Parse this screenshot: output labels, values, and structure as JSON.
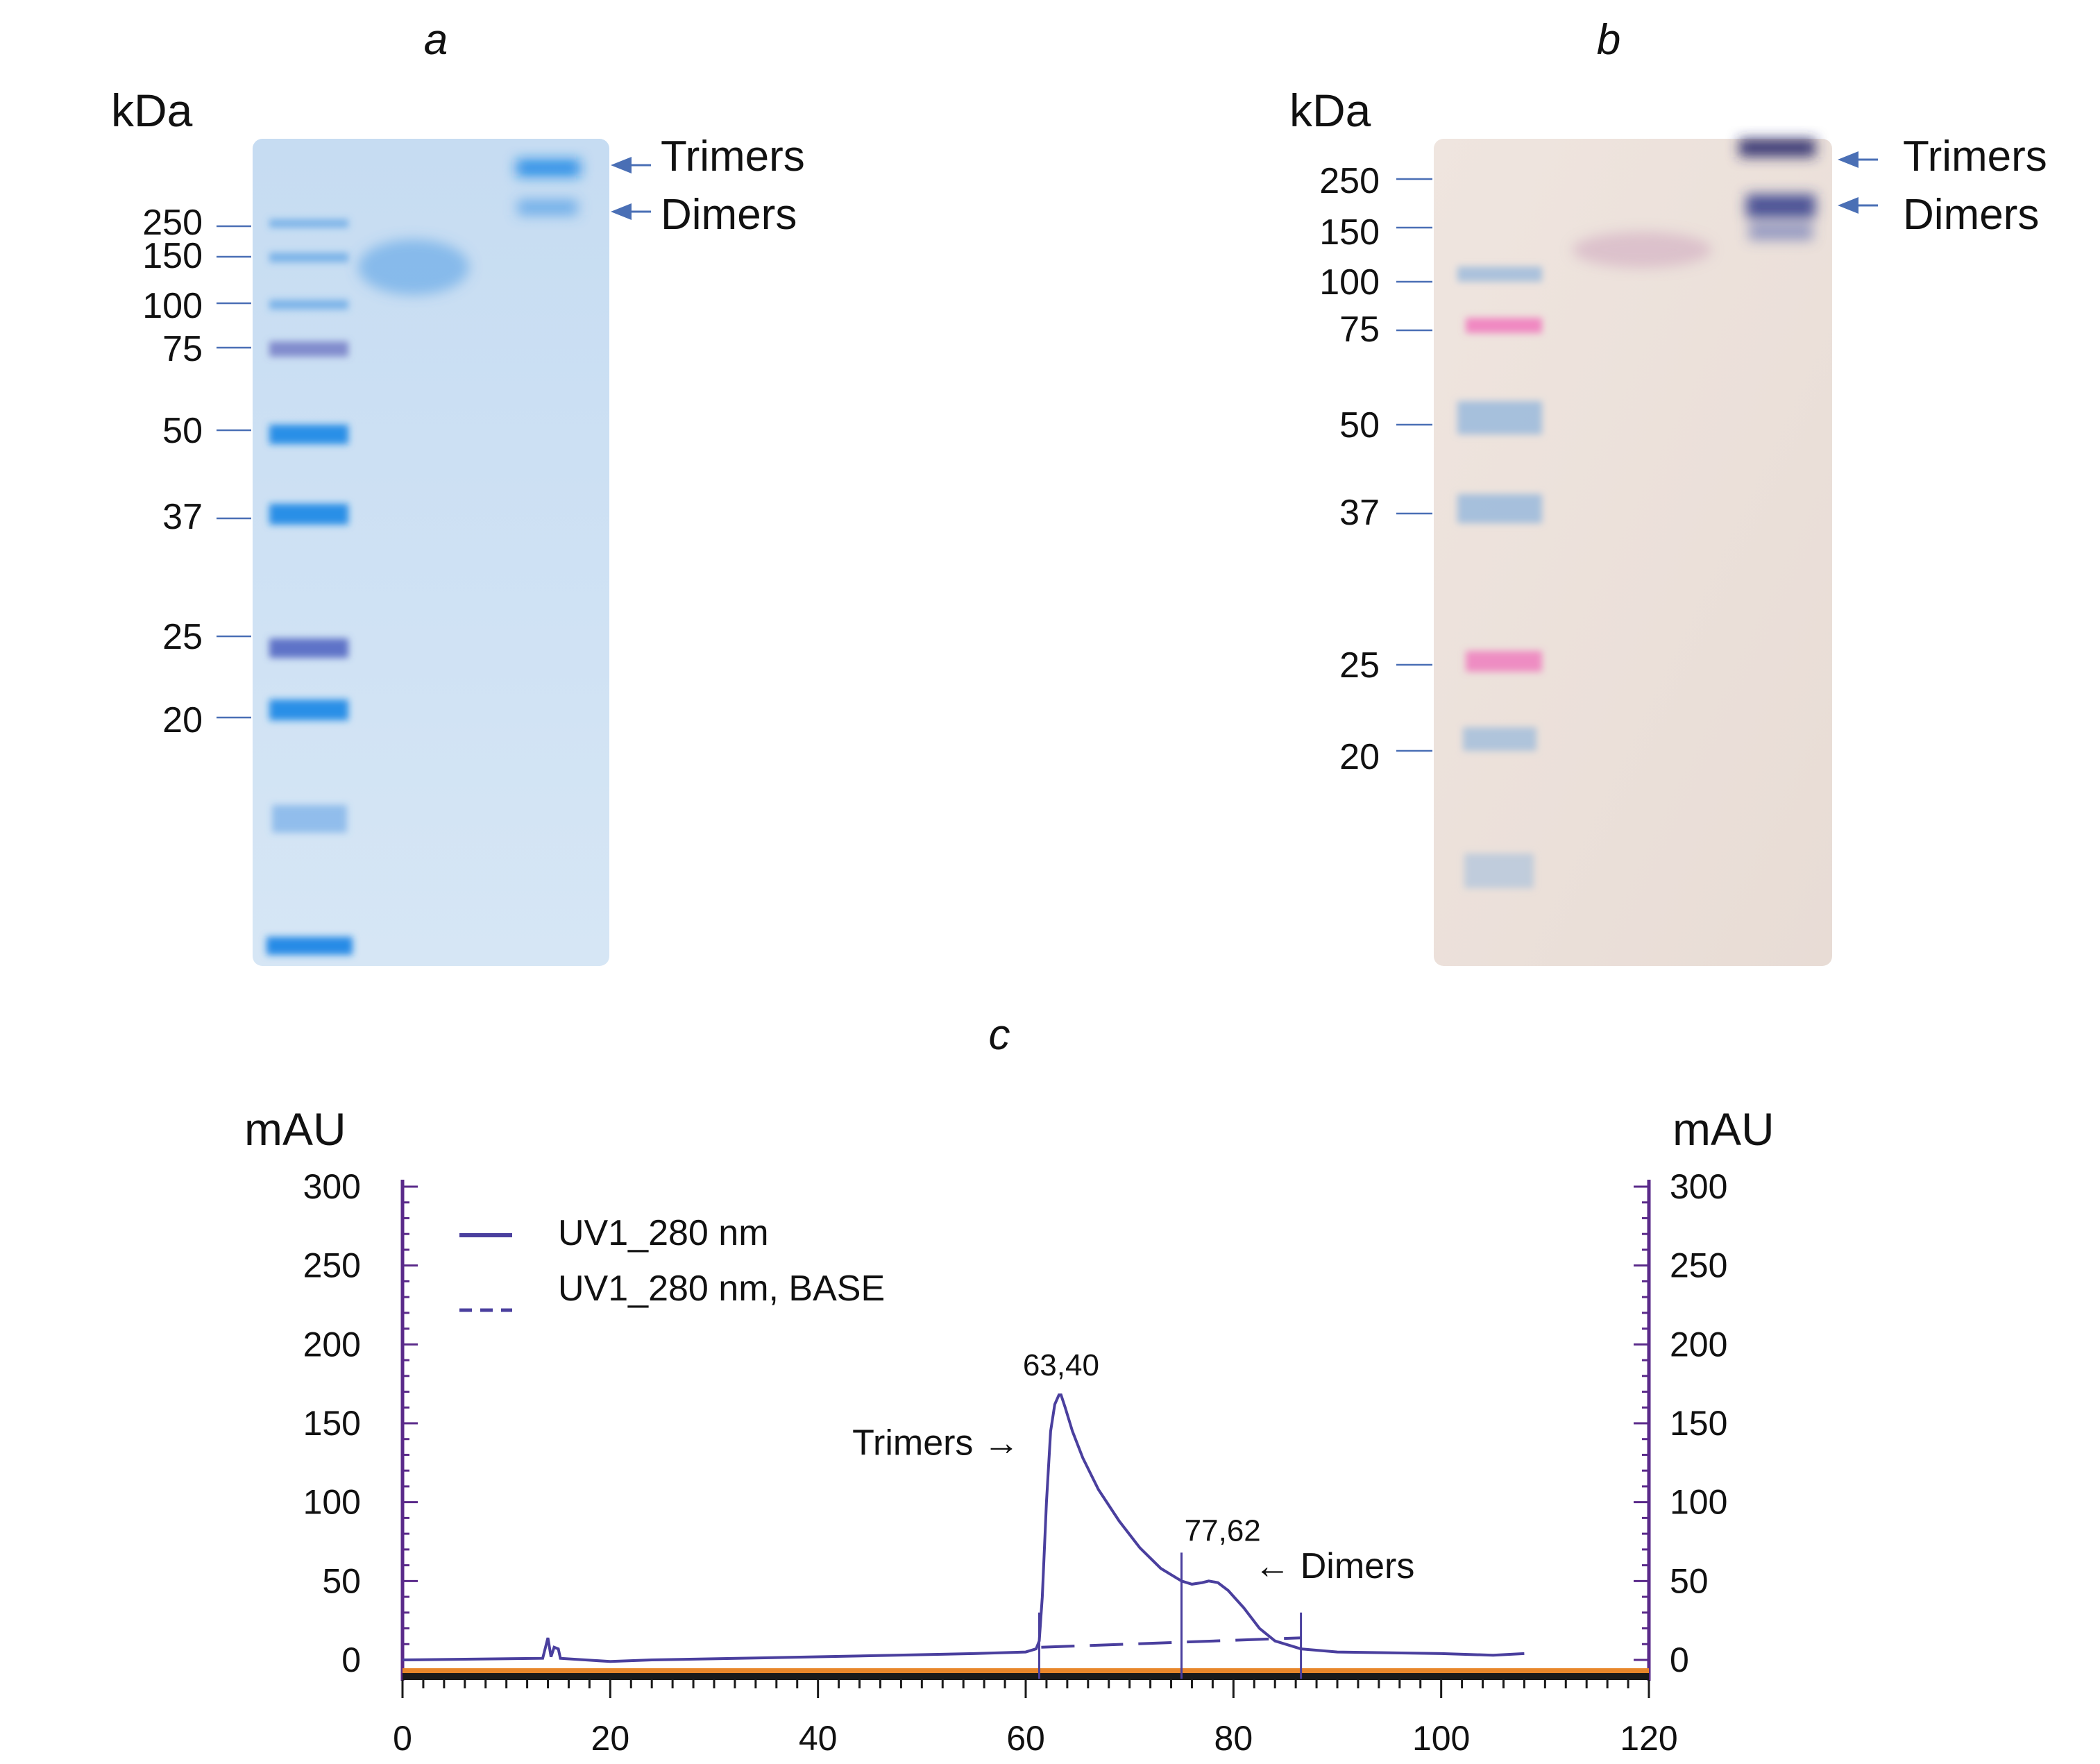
{
  "panel_a": {
    "label": "a",
    "unit": "kDa",
    "markers": [
      "250",
      "150",
      "100",
      "75",
      "50",
      "37",
      "25",
      "20"
    ],
    "bands": {
      "trimers": "Trimers",
      "dimers": "Dimers"
    }
  },
  "panel_b": {
    "label": "b",
    "unit": "kDa",
    "markers": [
      "250",
      "150",
      "100",
      "75",
      "50",
      "37",
      "25",
      "20"
    ],
    "bands": {
      "trimers": "Trimers",
      "dimers": "Dimers"
    }
  },
  "colors": {
    "trace": "#4a3f9e",
    "gel_a": "#cfe2f4",
    "gel_b": "#ece2dc",
    "arrow": "#4a6fb5",
    "baseline_band": "#e8862a",
    "axis_purple": "#5a2a8a"
  },
  "chart_data": {
    "type": "line",
    "panel_label": "c",
    "ylabel_left": "mAU",
    "ylabel_right": "mAU",
    "xlim": [
      0,
      120
    ],
    "ylim": [
      0,
      300
    ],
    "xticks": [
      "0",
      "20",
      "40",
      "60",
      "80",
      "100",
      "120"
    ],
    "yticks": [
      "0",
      "50",
      "100",
      "150",
      "200",
      "250",
      "300"
    ],
    "legend": [
      "UV1_280 nm",
      "UV1_280 nm, BASE"
    ],
    "series": [
      {
        "name": "UV1_280 nm",
        "x": [
          0,
          13.5,
          14,
          14.3,
          14.6,
          15,
          15.2,
          20,
          24,
          40,
          55,
          60,
          61,
          61.3,
          61.6,
          62,
          62.4,
          62.8,
          63.2,
          63.4,
          63.8,
          64.5,
          65.5,
          67,
          69,
          71,
          73,
          75,
          76,
          77,
          77.62,
          78.5,
          79.5,
          81,
          82.5,
          84,
          86,
          86.5,
          90,
          100,
          105,
          108
        ],
        "y": [
          0,
          1,
          14,
          2,
          8,
          7,
          1,
          -1,
          0,
          2,
          4,
          5,
          7,
          12,
          40,
          100,
          145,
          162,
          168,
          168,
          160,
          145,
          128,
          108,
          88,
          71,
          58,
          50,
          48,
          49,
          50,
          49,
          44,
          33,
          20,
          12,
          8,
          7,
          5,
          4,
          3,
          4
        ]
      },
      {
        "name": "UV1_280 nm, BASE",
        "x": [
          61.5,
          86.5
        ],
        "y": [
          8,
          14
        ]
      }
    ],
    "annotations": [
      {
        "text": "63,40",
        "x": 63.4,
        "y": 168
      },
      {
        "text": "77,62",
        "x": 77.62,
        "y": 50
      },
      {
        "text": "Trimers →",
        "x": 63.4,
        "y": 130
      },
      {
        "text": "← Dimers",
        "x": 82,
        "y": 52
      }
    ],
    "peak_markers": [
      61.3,
      75,
      86.5
    ]
  }
}
